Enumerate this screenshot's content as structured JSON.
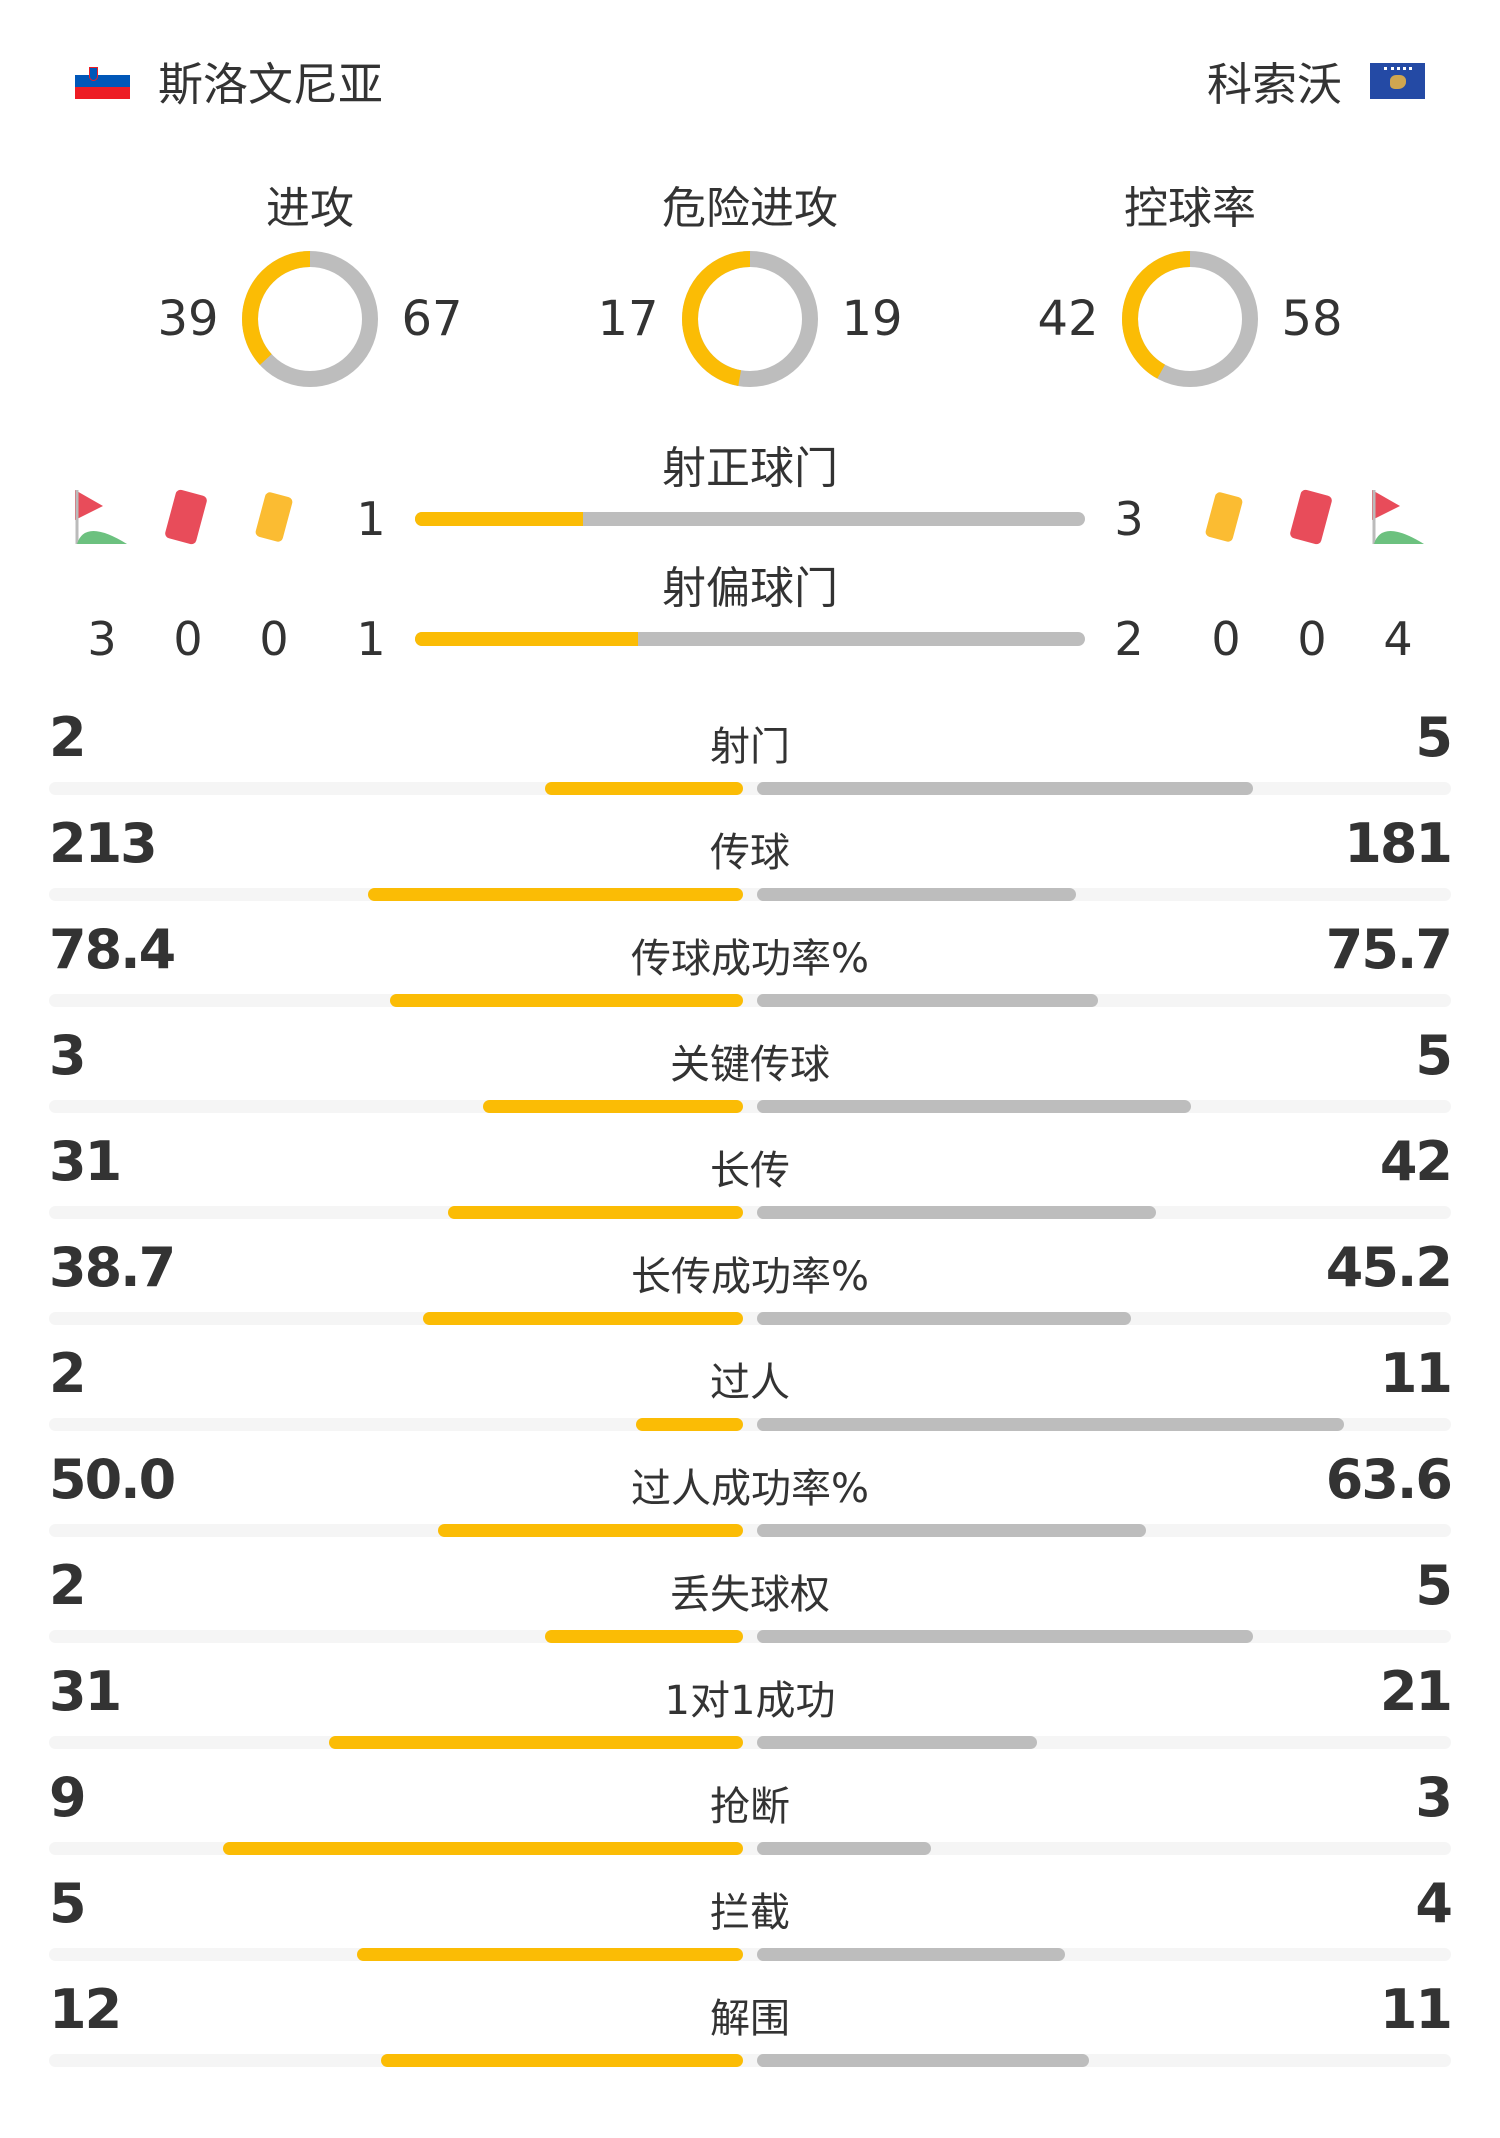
{
  "colors": {
    "home": "#fbbc05",
    "away": "#bdbdbd",
    "track": "#f5f5f5"
  },
  "home": {
    "name": "斯洛文尼亚",
    "flag": "slovenia-flag"
  },
  "away": {
    "name": "科索沃",
    "flag": "kosovo-flag"
  },
  "donuts": [
    {
      "title": "进攻",
      "home": 39,
      "away": 67
    },
    {
      "title": "危险进攻",
      "home": 17,
      "away": 19
    },
    {
      "title": "控球率",
      "home": 42,
      "away": 58
    }
  ],
  "shots_on": {
    "label": "射正球门",
    "home": 1,
    "away": 3
  },
  "shots_off": {
    "label": "射偏球门",
    "home": 1,
    "away": 2
  },
  "events": {
    "icons": [
      "corner-flag-icon",
      "red-card-icon",
      "yellow-card-icon"
    ],
    "home": {
      "corners": 3,
      "red": 0,
      "yellow": 0
    },
    "away": {
      "yellow": 0,
      "red": 0,
      "corners": 4
    }
  },
  "stats": [
    {
      "label": "射门",
      "home": "2",
      "away": "5"
    },
    {
      "label": "传球",
      "home": "213",
      "away": "181"
    },
    {
      "label": "传球成功率%",
      "home": "78.4",
      "away": "75.7"
    },
    {
      "label": "关键传球",
      "home": "3",
      "away": "5"
    },
    {
      "label": "长传",
      "home": "31",
      "away": "42"
    },
    {
      "label": "长传成功率%",
      "home": "38.7",
      "away": "45.2"
    },
    {
      "label": "过人",
      "home": "2",
      "away": "11"
    },
    {
      "label": "过人成功率%",
      "home": "50.0",
      "away": "63.6"
    },
    {
      "label": "丢失球权",
      "home": "2",
      "away": "5"
    },
    {
      "label": "1对1成功",
      "home": "31",
      "away": "21"
    },
    {
      "label": "抢断",
      "home": "9",
      "away": "3"
    },
    {
      "label": "拦截",
      "home": "5",
      "away": "4"
    },
    {
      "label": "解围",
      "home": "12",
      "away": "11"
    }
  ]
}
